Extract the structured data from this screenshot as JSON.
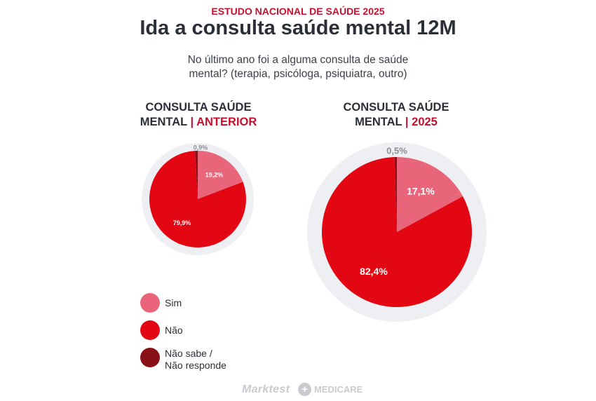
{
  "header": {
    "kicker": "ESTUDO NACIONAL DE SAÚDE 2025",
    "title": "Ida a consulta saúde mental 12M",
    "subtitle_line1": "No último ano foi a alguma consulta de saúde",
    "subtitle_line2": "mental? (terapia, psicóloga, psiquiatra, outro)"
  },
  "colors": {
    "sim": "#e9657a",
    "nao": "#e30613",
    "ns_nr": "#8a1018",
    "ring": "#eeeff2",
    "accent": "#c8102e",
    "text": "#2b2f38"
  },
  "chart_data": [
    {
      "type": "pie",
      "title_line1": "CONSULTA SAÚDE",
      "title_line2_prefix": "MENTAL",
      "title_line2_accent": "ANTERIOR",
      "slices": [
        {
          "name": "Sim",
          "value": 19.2,
          "label": "19,2%"
        },
        {
          "name": "Não",
          "value": 79.9,
          "label": "79,9%"
        },
        {
          "name": "Não sabe / Não responde",
          "value": 0.9,
          "label": "0,9%"
        }
      ]
    },
    {
      "type": "pie",
      "title_line1": "CONSULTA SAÚDE",
      "title_line2_prefix": "MENTAL",
      "title_line2_accent": "2025",
      "slices": [
        {
          "name": "Sim",
          "value": 17.1,
          "label": "17,1%"
        },
        {
          "name": "Não",
          "value": 82.4,
          "label": "82,4%"
        },
        {
          "name": "Não sabe / Não responde",
          "value": 0.5,
          "label": "0,5%"
        }
      ]
    }
  ],
  "legend": {
    "items": [
      {
        "key": "sim",
        "line1": "Sim",
        "line2": ""
      },
      {
        "key": "nao",
        "line1": "Não",
        "line2": ""
      },
      {
        "key": "ns_nr",
        "line1": "Não sabe /",
        "line2": "Não responde"
      }
    ]
  },
  "footer": {
    "brand1": "Marktest",
    "brand2": "MEDICARE"
  }
}
